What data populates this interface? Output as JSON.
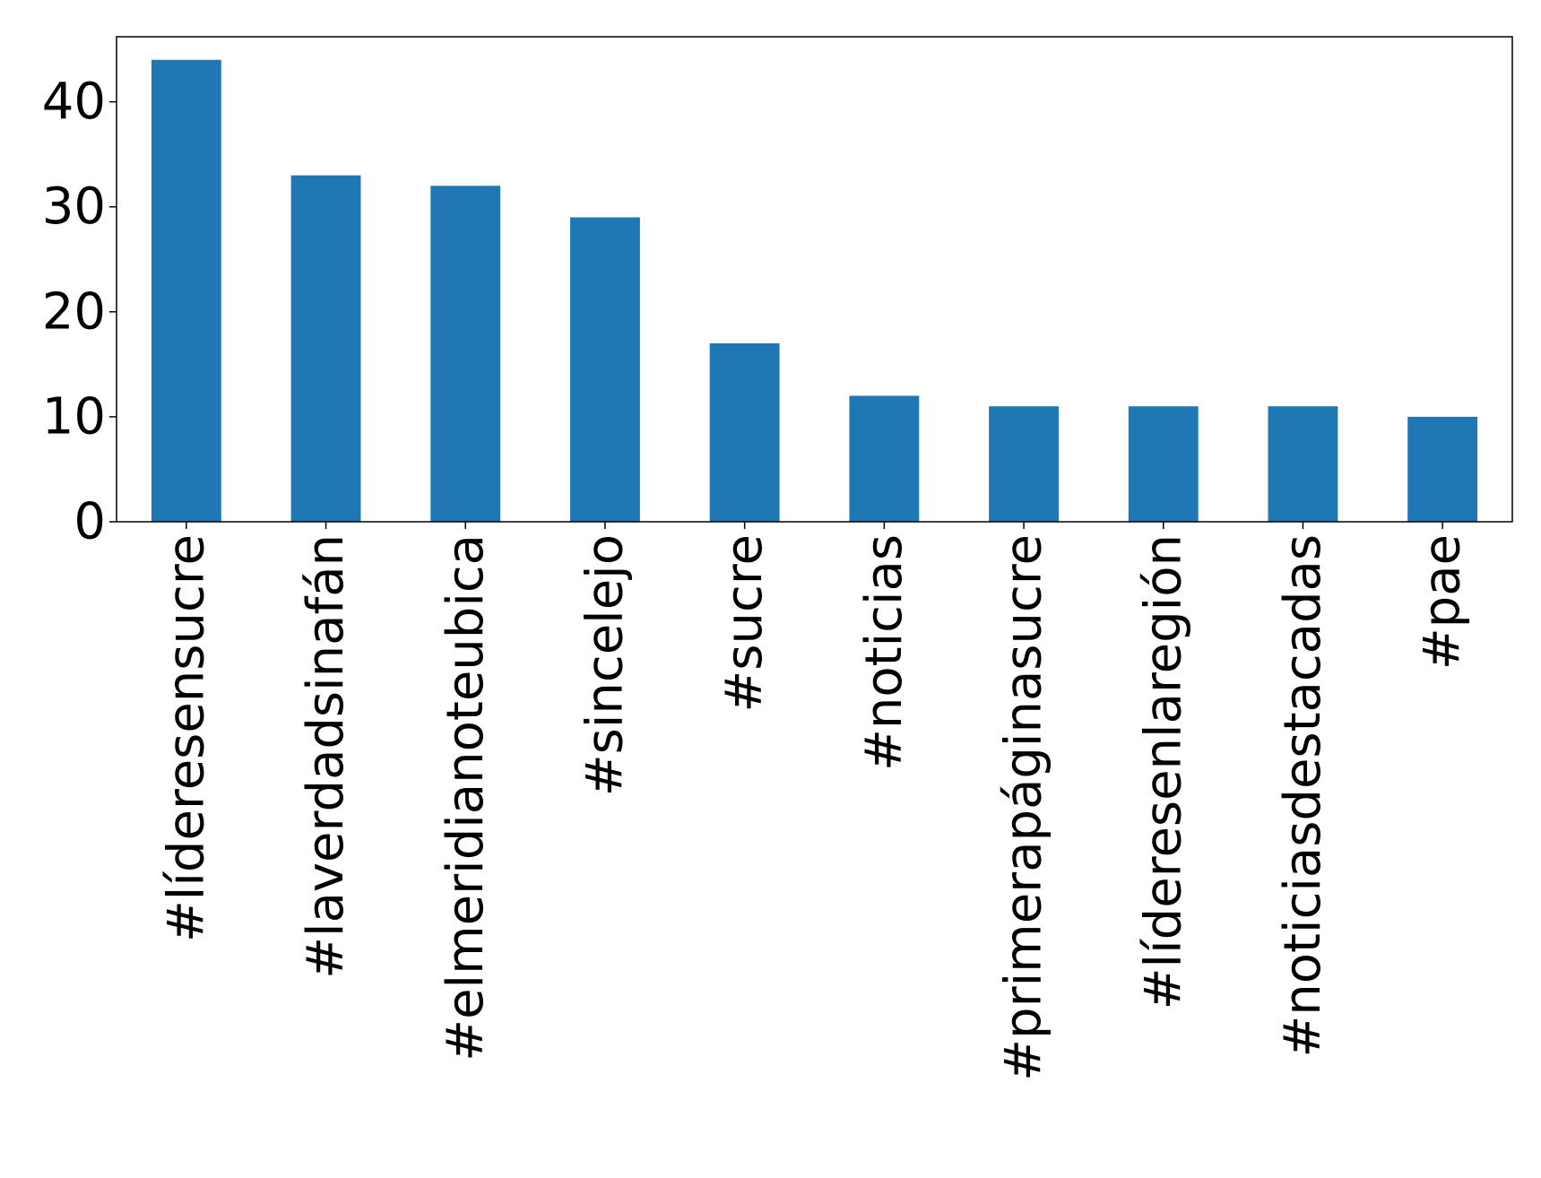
{
  "chart_data": {
    "type": "bar",
    "title": "",
    "xlabel": "",
    "ylabel": "",
    "categories": [
      "#líderesensucre",
      "#laverdadsinafán",
      "#elmeridianoteubica",
      "#sincelejo",
      "#sucre",
      "#noticias",
      "#primerapáginasucre",
      "#líderesenlaregión",
      "#noticiasdestacadas",
      "#pae"
    ],
    "values": [
      44,
      33,
      32,
      29,
      17,
      12,
      11,
      11,
      11,
      10
    ],
    "ylim": [
      0,
      46.2
    ],
    "yticks": [
      0,
      10,
      20,
      30,
      40
    ],
    "bar_color": "#1f77b4",
    "grid": false,
    "legend": "none"
  }
}
